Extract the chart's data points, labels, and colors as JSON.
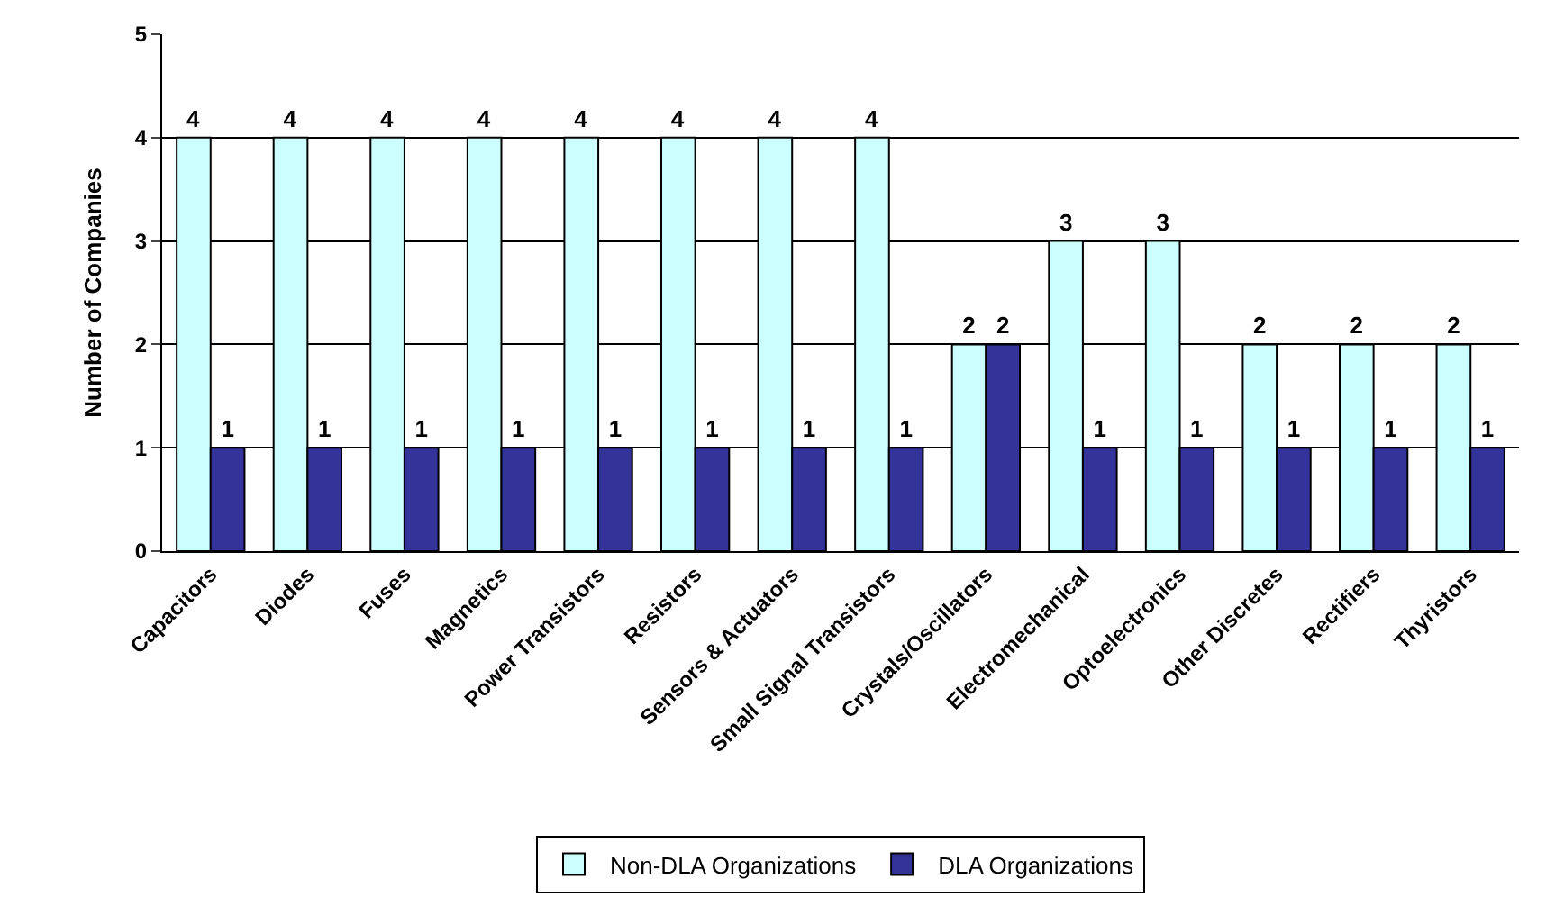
{
  "chart_data": {
    "type": "bar",
    "ylabel": "Number of Companies",
    "categories": [
      "Capacitors",
      "Diodes",
      "Fuses",
      "Magnetics",
      "Power Transistors",
      "Resistors",
      "Sensors & Actuators",
      "Small Signal Transistors",
      "Crystals/Oscillators",
      "Electromechanical",
      "Optoelectronics",
      "Other Discretes",
      "Rectifiers",
      "Thyristors"
    ],
    "series": [
      {
        "name": "Non-DLA Organizations",
        "color": "#ccffff",
        "values": [
          4,
          4,
          4,
          4,
          4,
          4,
          4,
          4,
          2,
          3,
          3,
          2,
          2,
          2
        ]
      },
      {
        "name": "DLA Organizations",
        "color": "#333399",
        "values": [
          1,
          1,
          1,
          1,
          1,
          1,
          1,
          1,
          2,
          1,
          1,
          1,
          1,
          1
        ]
      }
    ],
    "ylim": [
      0,
      5
    ],
    "yticks": [
      0,
      1,
      2,
      3,
      4,
      5
    ],
    "grid": "y",
    "legend": "bottom",
    "data_labels": true
  }
}
